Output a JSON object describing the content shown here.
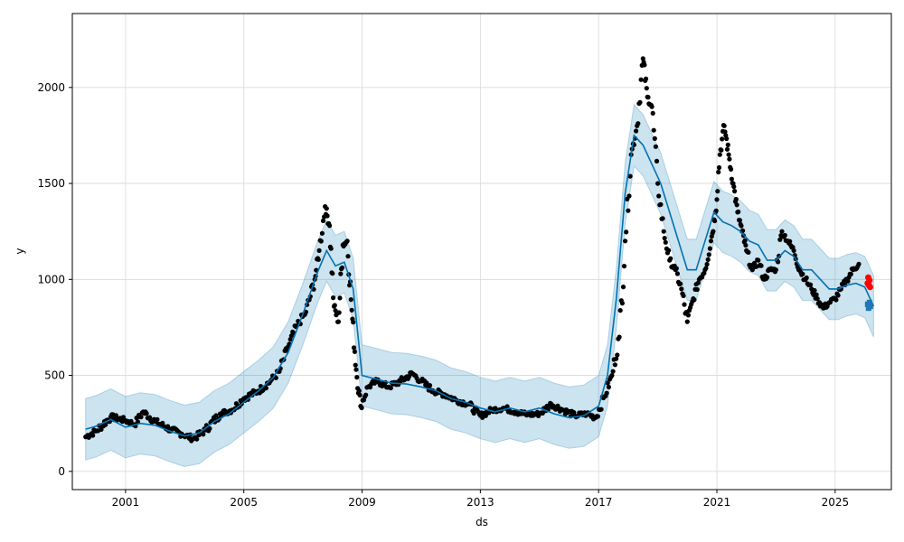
{
  "chart_data": {
    "type": "line",
    "title": "",
    "xlabel": "ds",
    "ylabel": "y",
    "xlim": [
      1999.2,
      2026.9
    ],
    "ylim": [
      -95,
      2385
    ],
    "grid": true,
    "x_ticks": [
      2001,
      2005,
      2009,
      2013,
      2017,
      2021,
      2025
    ],
    "y_ticks": [
      0,
      500,
      1000,
      1500,
      2000
    ],
    "colors": {
      "observed": "#000000",
      "forecast_line": "#0072B2",
      "uncertainty_band": "#0072B2",
      "highlight_points": "#ff0000",
      "forecast_points": "#1f77b4",
      "grid": "#d9d9d9"
    },
    "series": [
      {
        "role": "observed",
        "x": [
          1999.65,
          2000.0,
          2000.5,
          2001.0,
          2001.3,
          2001.6,
          2002.0,
          2002.5,
          2002.9,
          2003.3,
          2003.7,
          2004.2,
          2004.6,
          2005.0,
          2005.5,
          2005.9,
          2006.2,
          2006.5,
          2006.8,
          2007.1,
          2007.4,
          2007.55,
          2007.75,
          2007.9,
          2008.05,
          2008.2,
          2008.35,
          2008.5,
          2008.65,
          2008.8,
          2008.95,
          2009.2,
          2009.5,
          2009.9,
          2010.3,
          2010.7,
          2011.0,
          2011.4,
          2011.8,
          2012.2,
          2012.6,
          2013.0,
          2013.4,
          2013.8,
          2014.2,
          2014.6,
          2015.0,
          2015.4,
          2015.8,
          2016.2,
          2016.6,
          2016.9,
          2017.2,
          2017.45,
          2017.7,
          2017.9,
          2018.1,
          2018.3,
          2018.5,
          2018.65,
          2018.8,
          2019.0,
          2019.2,
          2019.4,
          2019.6,
          2019.8,
          2020.0,
          2020.2,
          2020.4,
          2020.6,
          2020.8,
          2020.95,
          2021.1,
          2021.25,
          2021.4,
          2021.55,
          2021.7,
          2021.85,
          2022.0,
          2022.2,
          2022.4,
          2022.6,
          2022.8,
          2023.0,
          2023.2,
          2023.4,
          2023.6,
          2023.8,
          2024.0,
          2024.2,
          2024.4,
          2024.6,
          2024.8,
          2025.0,
          2025.2,
          2025.4,
          2025.6,
          2025.8
        ],
        "y": [
          180,
          210,
          285,
          265,
          245,
          310,
          260,
          220,
          195,
          170,
          215,
          300,
          320,
          380,
          420,
          470,
          520,
          650,
          760,
          830,
          1000,
          1150,
          1380,
          1280,
          860,
          780,
          1180,
          1200,
          840,
          530,
          340,
          440,
          470,
          440,
          470,
          510,
          470,
          420,
          400,
          370,
          350,
          290,
          320,
          330,
          310,
          295,
          300,
          350,
          320,
          290,
          300,
          280,
          390,
          500,
          700,
          1200,
          1650,
          1800,
          2150,
          1950,
          1900,
          1500,
          1250,
          1100,
          1050,
          950,
          780,
          900,
          1000,
          1050,
          1200,
          1350,
          1650,
          1800,
          1650,
          1500,
          1350,
          1250,
          1150,
          1050,
          1100,
          1000,
          1050,
          1050,
          1250,
          1200,
          1150,
          1050,
          1000,
          950,
          900,
          850,
          880,
          900,
          950,
          1000,
          1050,
          1080
        ]
      },
      {
        "role": "forecast",
        "x": [
          1999.65,
          2000.0,
          2000.5,
          2001.0,
          2001.5,
          2002.0,
          2002.5,
          2003.0,
          2003.5,
          2004.0,
          2004.5,
          2005.0,
          2005.5,
          2006.0,
          2006.5,
          2007.0,
          2007.5,
          2007.8,
          2008.1,
          2008.4,
          2008.7,
          2009.0,
          2009.5,
          2010.0,
          2010.5,
          2011.0,
          2011.5,
          2012.0,
          2012.5,
          2013.0,
          2013.5,
          2014.0,
          2014.5,
          2015.0,
          2015.5,
          2016.0,
          2016.5,
          2017.0,
          2017.3,
          2017.6,
          2017.9,
          2018.2,
          2018.5,
          2018.8,
          2019.1,
          2019.4,
          2019.7,
          2020.0,
          2020.3,
          2020.6,
          2020.9,
          2021.2,
          2021.5,
          2021.8,
          2022.1,
          2022.4,
          2022.7,
          2023.0,
          2023.3,
          2023.6,
          2023.9,
          2024.2,
          2024.5,
          2024.8,
          2025.1,
          2025.4,
          2025.7,
          2026.0,
          2026.3
        ],
        "y": [
          220,
          235,
          270,
          230,
          250,
          240,
          210,
          185,
          200,
          260,
          300,
          360,
          420,
          490,
          620,
          820,
          1040,
          1150,
          1070,
          1090,
          950,
          500,
          480,
          460,
          455,
          440,
          420,
          380,
          360,
          330,
          310,
          330,
          310,
          330,
          300,
          280,
          290,
          340,
          500,
          900,
          1450,
          1750,
          1700,
          1600,
          1500,
          1350,
          1200,
          1050,
          1050,
          1200,
          1350,
          1300,
          1280,
          1250,
          1200,
          1180,
          1100,
          1100,
          1150,
          1120,
          1050,
          1050,
          1000,
          950,
          950,
          970,
          980,
          960,
          860
        ]
      },
      {
        "role": "highlight",
        "x": [
          2026.1,
          2026.12,
          2026.14,
          2026.16,
          2026.18
        ],
        "y": [
          980,
          1010,
          970,
          995,
          960
        ]
      },
      {
        "role": "forecast_points",
        "x": [
          2026.1,
          2026.13,
          2026.16,
          2026.19
        ],
        "y": [
          870,
          850,
          880,
          860
        ]
      }
    ],
    "uncertainty_half_width": 160
  }
}
